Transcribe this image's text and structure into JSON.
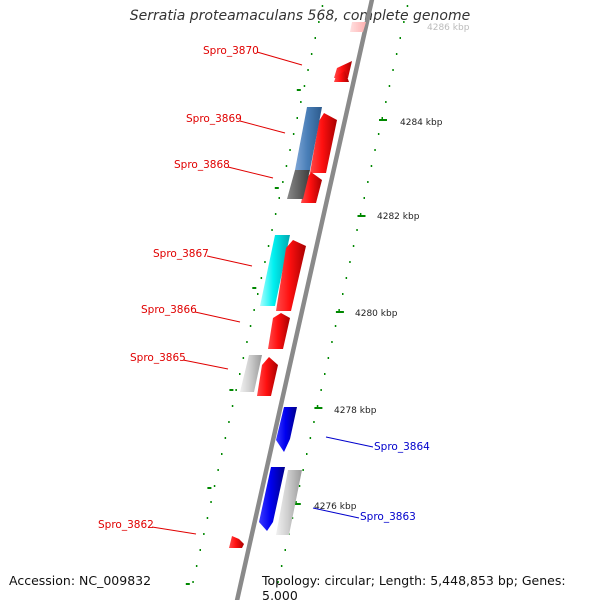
{
  "title": "Serratia proteamaculans 568, complete genome",
  "accession": "Accession: NC_009832",
  "summary": "Topology: circular; Length: 5,448,853 bp; Genes: 5,000",
  "colors": {
    "forward_label": "#e00000",
    "reverse_label": "#0000cc",
    "backbone": "#8a8a8a",
    "tick": "#008800"
  },
  "scale_labels": [
    "4286 kbp",
    "4284 kbp",
    "4282 kbp",
    "4280 kbp",
    "4278 kbp",
    "4276 kbp"
  ],
  "genes": [
    {
      "label": "Spro_3870",
      "color": "red"
    },
    {
      "label": "Spro_3869",
      "color": "red"
    },
    {
      "label": "Spro_3868",
      "color": "red"
    },
    {
      "label": "Spro_3867",
      "color": "red"
    },
    {
      "label": "Spro_3866",
      "color": "red"
    },
    {
      "label": "Spro_3865",
      "color": "red"
    },
    {
      "label": "Spro_3864",
      "color": "blue"
    },
    {
      "label": "Spro_3863",
      "color": "blue"
    },
    {
      "label": "Spro_3862",
      "color": "red"
    }
  ]
}
